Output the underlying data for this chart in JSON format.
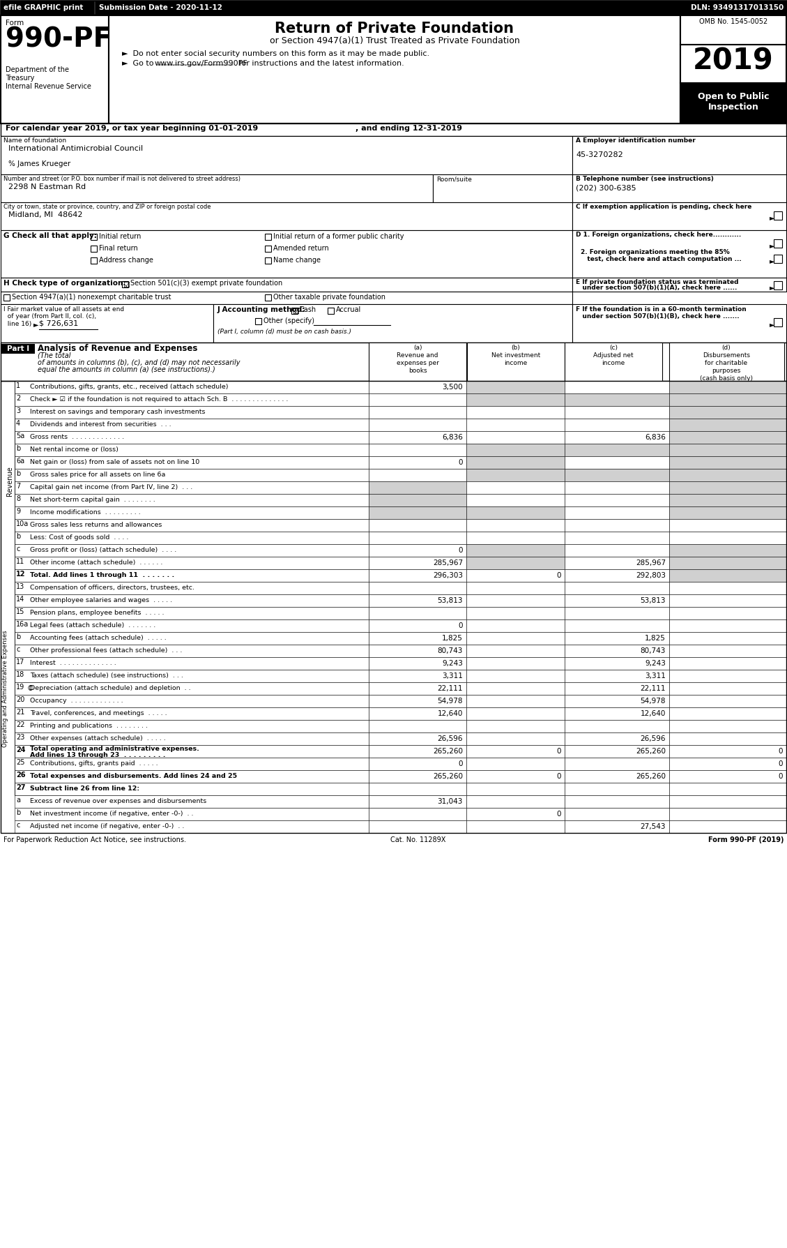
{
  "header_bar": {
    "text": "efile GRAPHIC print    Submission Date - 2020-11-12                                                                DLN: 93491317013150",
    "bg": "#000000",
    "fg": "#ffffff"
  },
  "form_number": "990-PF",
  "form_label": "Form",
  "form_title": "Return of Private Foundation",
  "form_subtitle": "or Section 4947(a)(1) Trust Treated as Private Foundation",
  "form_bullet1": "►  Do not enter social security numbers on this form as it may be made public.",
  "form_bullet2": "►  Go to www.irs.gov/Form990PF for instructions and the latest information.",
  "dept_line1": "Department of the",
  "dept_line2": "Treasury",
  "dept_line3": "Internal Revenue Service",
  "omb": "OMB No. 1545-0052",
  "year": "2019",
  "open_to_public": "Open to Public\nInspection",
  "calendar_line": "For calendar year 2019, or tax year beginning 01-01-2019          , and ending 12-31-2019",
  "name_label": "Name of foundation",
  "name_value": "International Antimicrobial Council",
  "care_of": "% James Krueger",
  "address_label": "Number and street (or P.O. box number if mail is not delivered to street address)",
  "room_label": "Room/suite",
  "address_value": "2298 N Eastman Rd",
  "city_label": "City or town, state or province, country, and ZIP or foreign postal code",
  "city_value": "Midland, MI  48642",
  "ein_label": "A Employer identification number",
  "ein_value": "45-3270282",
  "phone_label": "B Telephone number (see instructions)",
  "phone_value": "(202) 300-6385",
  "exempt_label": "C If exemption application is pending, check here",
  "d1_label": "D 1. Foreign organizations, check here............",
  "d2_label": "2. Foreign organizations meeting the 85% test, check here and attach computation ...",
  "e_label": "E If private foundation status was terminated under section 507(b)(1)(A), check here ......",
  "g_label": "G Check all that apply:",
  "g_options": [
    "Initial return",
    "Initial return of a former public charity",
    "Final return",
    "Amended return",
    "Address change",
    "Name change"
  ],
  "h_label": "H Check type of organization:",
  "h_option1": "Section 501(c)(3) exempt private foundation",
  "h_option2": "Section 4947(a)(1) nonexempt charitable trust",
  "h_option3": "Other taxable private foundation",
  "i_label": "I Fair market value of all assets at end of year (from Part II, col. (c), line 16)",
  "i_value": "$ 726,631",
  "j_label": "J Accounting method:",
  "j_cash": "Cash",
  "j_accrual": "Accrual",
  "j_other": "Other (specify)",
  "j_note": "(Part I, column (d) must be on cash basis.)",
  "f_label": "F If the foundation is in a 60-month termination under section 507(b)(1)(B), check here .......",
  "part1_label": "Part I",
  "part1_title": "Analysis of Revenue and Expenses",
  "part1_subtitle": "(The total of amounts in columns (b), (c), and (d) may not necessarily equal the amounts in column (a) (see instructions).)",
  "col_a": "Revenue and\nexpenses per\nbooks",
  "col_b": "Net investment\nincome",
  "col_c": "Adjusted net\nincome",
  "col_d": "Disbursements\nfor charitable\npurposes\n(cash basis only)",
  "rows": [
    {
      "num": "1",
      "label": "Contributions, gifts, grants, etc., received (attach schedule)",
      "a": "3,500",
      "b": "",
      "c": "",
      "d": "",
      "shade_b": true,
      "shade_d": true
    },
    {
      "num": "2",
      "label": "Check ► ☑ if the foundation is not required to attach Sch. B  . . . . . . . . . . . . . .",
      "a": "",
      "b": "",
      "c": "",
      "d": "",
      "shade_b": true,
      "shade_c": true,
      "shade_d": true
    },
    {
      "num": "3",
      "label": "Interest on savings and temporary cash investments",
      "a": "",
      "b": "",
      "c": "",
      "d": "",
      "shade_d": true
    },
    {
      "num": "4",
      "label": "Dividends and interest from securities  . . .",
      "a": "",
      "b": "",
      "c": "",
      "d": "",
      "shade_d": true
    },
    {
      "num": "5a",
      "label": "Gross rents  . . . . . . . . . . . . .",
      "a": "6,836",
      "b": "",
      "c": "6,836",
      "d": "",
      "shade_d": true
    },
    {
      "num": "b",
      "label": "Net rental income or (loss)",
      "a": "",
      "b": "",
      "c": "",
      "d": "",
      "shade_b": true,
      "shade_c": true,
      "shade_d": true
    },
    {
      "num": "6a",
      "label": "Net gain or (loss) from sale of assets not on line 10",
      "a": "0",
      "b": "",
      "c": "",
      "d": "",
      "shade_b": true,
      "shade_d": true
    },
    {
      "num": "b",
      "label": "Gross sales price for all assets on line 6a",
      "a": "",
      "b": "",
      "c": "",
      "d": "",
      "shade_b": true,
      "shade_c": true,
      "shade_d": true
    },
    {
      "num": "7",
      "label": "Capital gain net income (from Part IV, line 2)  . . .",
      "a": "",
      "b": "",
      "c": "",
      "d": "",
      "shade_a": true,
      "shade_d": true
    },
    {
      "num": "8",
      "label": "Net short-term capital gain  . . . . . . . .",
      "a": "",
      "b": "",
      "c": "",
      "d": "",
      "shade_a": true,
      "shade_d": true
    },
    {
      "num": "9",
      "label": "Income modifications  . . . . . . . . .",
      "a": "",
      "b": "",
      "c": "",
      "d": "",
      "shade_a": true,
      "shade_b": true,
      "shade_d": true
    },
    {
      "num": "10a",
      "label": "Gross sales less returns and allowances",
      "a": "",
      "b": "",
      "c": "",
      "d": ""
    },
    {
      "num": "b",
      "label": "Less: Cost of goods sold  . . . .",
      "a": "",
      "b": "",
      "c": "",
      "d": ""
    },
    {
      "num": "c",
      "label": "Gross profit or (loss) (attach schedule)  . . . .",
      "a": "0",
      "b": "",
      "c": "",
      "d": "",
      "shade_b": true,
      "shade_d": true
    },
    {
      "num": "11",
      "label": "Other income (attach schedule)  . . . . . .",
      "a": "285,967",
      "b": "",
      "c": "285,967",
      "d": "",
      "shade_b": true,
      "shade_d": true
    },
    {
      "num": "12",
      "label": "Total. Add lines 1 through 11  . . . . . . .",
      "a": "296,303",
      "b": "0",
      "c": "292,803",
      "d": "",
      "bold": true,
      "shade_d": true
    },
    {
      "num": "13",
      "label": "Compensation of officers, directors, trustees, etc.",
      "a": "",
      "b": "",
      "c": "",
      "d": ""
    },
    {
      "num": "14",
      "label": "Other employee salaries and wages  . . . . .",
      "a": "53,813",
      "b": "",
      "c": "53,813",
      "d": ""
    },
    {
      "num": "15",
      "label": "Pension plans, employee benefits  . . . . .",
      "a": "",
      "b": "",
      "c": "",
      "d": ""
    },
    {
      "num": "16a",
      "label": "Legal fees (attach schedule)  . . . . . . .",
      "a": "0",
      "b": "",
      "c": "",
      "d": ""
    },
    {
      "num": "b",
      "label": "Accounting fees (attach schedule)  . . . . .",
      "a": "1,825",
      "b": "",
      "c": "1,825",
      "d": ""
    },
    {
      "num": "c",
      "label": "Other professional fees (attach schedule)  . . .",
      "a": "80,743",
      "b": "",
      "c": "80,743",
      "d": ""
    },
    {
      "num": "17",
      "label": "Interest  . . . . . . . . . . . . . .",
      "a": "9,243",
      "b": "",
      "c": "9,243",
      "d": ""
    },
    {
      "num": "18",
      "label": "Taxes (attach schedule) (see instructions)  . . .",
      "a": "3,311",
      "b": "",
      "c": "3,311",
      "d": ""
    },
    {
      "num": "19",
      "label": "Depreciation (attach schedule) and depletion  . .",
      "a": "22,111",
      "b": "",
      "c": "22,111",
      "d": "",
      "icon": true
    },
    {
      "num": "20",
      "label": "Occupancy  . . . . . . . . . . . . .",
      "a": "54,978",
      "b": "",
      "c": "54,978",
      "d": ""
    },
    {
      "num": "21",
      "label": "Travel, conferences, and meetings  . . . . .",
      "a": "12,640",
      "b": "",
      "c": "12,640",
      "d": ""
    },
    {
      "num": "22",
      "label": "Printing and publications  . . . . . . . .",
      "a": "",
      "b": "",
      "c": "",
      "d": ""
    },
    {
      "num": "23",
      "label": "Other expenses (attach schedule)  . . . . .",
      "a": "26,596",
      "b": "",
      "c": "26,596",
      "d": ""
    },
    {
      "num": "24",
      "label": "Total operating and administrative expenses.\nAdd lines 13 through 23  . . . . . . . . .",
      "a": "265,260",
      "b": "0",
      "c": "265,260",
      "d": "0",
      "bold": true
    },
    {
      "num": "25",
      "label": "Contributions, gifts, grants paid  . . . . .",
      "a": "0",
      "b": "",
      "c": "",
      "d": "0"
    },
    {
      "num": "26",
      "label": "Total expenses and disbursements. Add lines 24 and 25",
      "a": "265,260",
      "b": "0",
      "c": "265,260",
      "d": "0",
      "bold": true
    },
    {
      "num": "27",
      "label": "Subtract line 26 from line 12:",
      "a": "",
      "b": "",
      "c": "",
      "d": "",
      "bold": true
    },
    {
      "num": "a",
      "label": "Excess of revenue over expenses and disbursements",
      "a": "31,043",
      "b": "",
      "c": "",
      "d": ""
    },
    {
      "num": "b",
      "label": "Net investment income (if negative, enter -0-)  . .",
      "a": "",
      "b": "0",
      "c": "",
      "d": ""
    },
    {
      "num": "c",
      "label": "Adjusted net income (if negative, enter -0-)  . .",
      "a": "",
      "b": "",
      "c": "27,543",
      "d": ""
    }
  ],
  "side_label_revenue": "Revenue",
  "side_label_expenses": "Operating and Administrative Expenses",
  "footer_left": "For Paperwork Reduction Act Notice, see instructions.",
  "footer_right": "Cat. No. 11289X",
  "footer_form": "Form 990-PF (2019)"
}
